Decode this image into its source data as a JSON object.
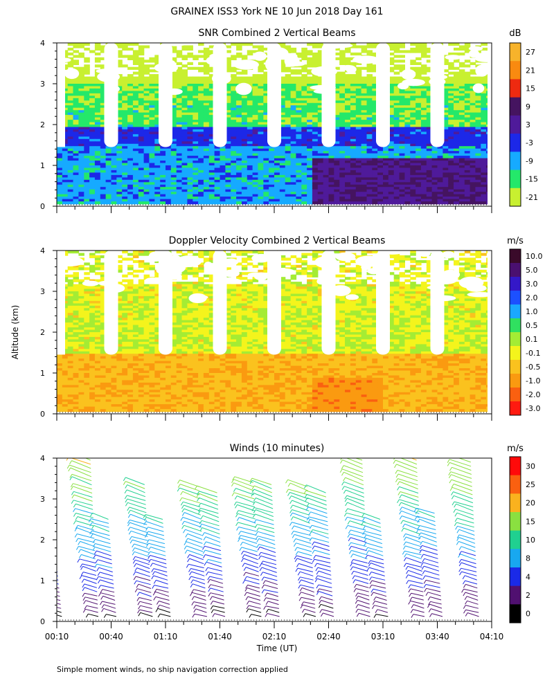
{
  "title": "GRAINEX ISS3 York NE  10 Jun 2018 Day 161",
  "y_axis_label": "Altitude (km)",
  "x_axis_label": "Time (UT)",
  "footnote": "Simple moment winds, no ship navigation correction applied",
  "chart_data": [
    {
      "type": "heatmap",
      "title": "SNR Combined 2 Vertical Beams",
      "xlabel": "",
      "ylabel": "Altitude (km)",
      "x_range_minutes": [
        10,
        250
      ],
      "ylim": [
        0,
        4
      ],
      "y_ticks": [
        0,
        1,
        2,
        3,
        4
      ],
      "colorbar": {
        "unit": "dB",
        "labels": [
          "27",
          "21",
          "15",
          "9",
          "3",
          "-3",
          "-9",
          "-15",
          "-21"
        ],
        "colors": [
          "#f7b32b",
          "#f98a10",
          "#ee2a10",
          "#451460",
          "#4f1a9a",
          "#1c28e8",
          "#16aaff",
          "#24e86a",
          "#c8f030"
        ]
      }
    },
    {
      "type": "heatmap",
      "title": "Doppler Velocity Combined 2 Vertical Beams",
      "xlabel": "",
      "ylabel": "Altitude (km)",
      "x_range_minutes": [
        10,
        250
      ],
      "ylim": [
        0,
        4
      ],
      "y_ticks": [
        0,
        1,
        2,
        3,
        4
      ],
      "colorbar": {
        "unit": "m/s",
        "labels": [
          "10.0",
          "5.0",
          "3.0",
          "2.0",
          "1.0",
          "0.5",
          "0.1",
          "-0.1",
          "-0.5",
          "-1.0",
          "-2.0",
          "-3.0"
        ],
        "colors": [
          "#3a0a2a",
          "#4a1070",
          "#3418c8",
          "#1c50ff",
          "#1aa8ff",
          "#30e060",
          "#a4ec34",
          "#f4f41c",
          "#fac21e",
          "#fa9a10",
          "#fa6010",
          "#ff1a10"
        ]
      }
    },
    {
      "type": "scatter",
      "title": "Winds (10 minutes)",
      "xlabel": "Time (UT)",
      "ylabel": "Altitude (km)",
      "x_range_minutes": [
        10,
        250
      ],
      "x_tick_labels": [
        "00:10",
        "00:40",
        "01:10",
        "01:40",
        "02:10",
        "02:40",
        "03:10",
        "03:40",
        "04:10"
      ],
      "ylim": [
        0,
        4
      ],
      "y_ticks": [
        0,
        1,
        2,
        3,
        4
      ],
      "colorbar": {
        "unit": "m/s",
        "labels": [
          "30",
          "25",
          "20",
          "15",
          "10",
          "8",
          "4",
          "2",
          "0"
        ],
        "colors": [
          "#ff0a0a",
          "#fa6010",
          "#fab21e",
          "#8ae040",
          "#20d090",
          "#18a8f0",
          "#1a2ae8",
          "#501070",
          "#000000"
        ]
      },
      "profiles": [
        {
          "time_min": 10,
          "top_km": 2.1
        },
        {
          "time_min": 30,
          "top_km": 4.05
        },
        {
          "time_min": 40,
          "top_km": 2.5
        },
        {
          "time_min": 60,
          "top_km": 3.35
        },
        {
          "time_min": 70,
          "top_km": 2.5
        },
        {
          "time_min": 90,
          "top_km": 3.3
        },
        {
          "time_min": 100,
          "top_km": 3.15
        },
        {
          "time_min": 120,
          "top_km": 3.4
        },
        {
          "time_min": 130,
          "top_km": 3.35
        },
        {
          "time_min": 150,
          "top_km": 3.3
        },
        {
          "time_min": 160,
          "top_km": 3.15
        },
        {
          "time_min": 180,
          "top_km": 4.05
        },
        {
          "time_min": 190,
          "top_km": 2.5
        },
        {
          "time_min": 210,
          "top_km": 4.05
        },
        {
          "time_min": 220,
          "top_km": 2.65
        },
        {
          "time_min": 240,
          "top_km": 3.9
        }
      ]
    }
  ]
}
